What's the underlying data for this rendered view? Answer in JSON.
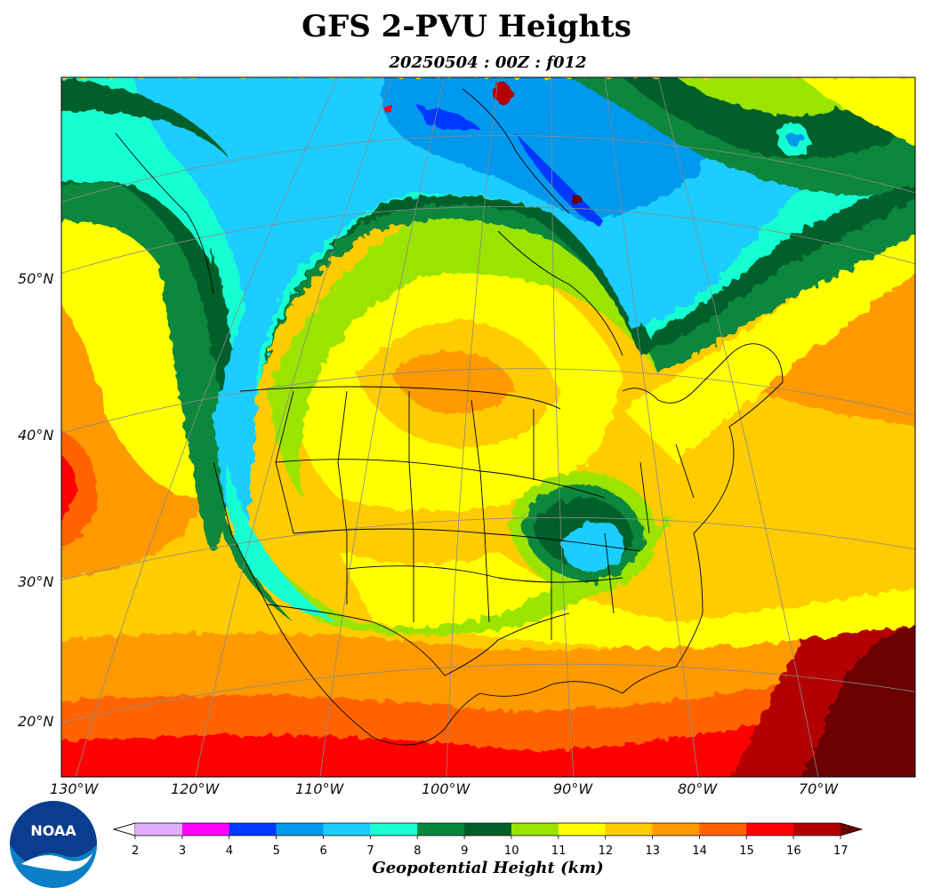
{
  "title": "GFS 2-PVU Heights",
  "subtitle": "20250504 : 00Z : f012",
  "latitude_labels": [
    "50°N",
    "40°N",
    "30°N",
    "20°N"
  ],
  "longitude_labels": [
    "130°W",
    "120°W",
    "110°W",
    "100°W",
    "90°W",
    "80°W",
    "70°W"
  ],
  "colorbar": {
    "label": "Geopotential Height (km)",
    "ticks": [
      "2",
      "3",
      "4",
      "5",
      "6",
      "7",
      "8",
      "9",
      "10",
      "11",
      "12",
      "13",
      "14",
      "15",
      "16",
      "17"
    ],
    "colors": [
      "#e0b0ff",
      "#ff00ff",
      "#0038ff",
      "#0099ee",
      "#1ccdff",
      "#19ffd2",
      "#08873d",
      "#015f2a",
      "#9ae400",
      "#ffff00",
      "#ffcc00",
      "#ff9a00",
      "#ff6300",
      "#ff0000",
      "#b30000"
    ],
    "extend_color": "#6a0000"
  },
  "logo": {
    "text": "NOAA",
    "icon": "noaa-logo-icon"
  }
}
